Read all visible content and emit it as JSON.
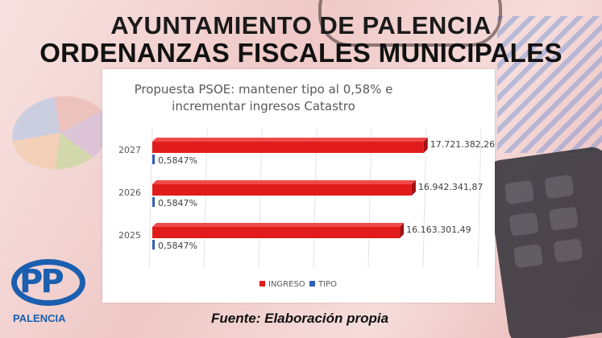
{
  "header": {
    "line1": "AYUNTAMIENTO DE PALENCIA",
    "line2": "ORDENANZAS FISCALES MUNICIPALES"
  },
  "footer": {
    "source": "Fuente: Elaboración propia",
    "logo_text": "PP",
    "logo_label": "PALENCIA"
  },
  "colors": {
    "ingreso": "#e11b1b",
    "tipo": "#2f5eb5",
    "brand": "#1a5fb0"
  },
  "chart_data": {
    "type": "bar",
    "orientation": "horizontal",
    "title": "Propuesta PSOE: mantener tipo al 0,58% e incrementar ingresos Catastro",
    "title_lines": [
      "Propuesta PSOE: mantener tipo al 0,58% e",
      "incrementar ingresos Catastro"
    ],
    "categories": [
      "2027",
      "2026",
      "2025"
    ],
    "series": [
      {
        "name": "INGRESO",
        "values": [
          17721382.26,
          16942341.87,
          16163301.49
        ],
        "labels": [
          "17.721.382,26",
          "16.942.341,87",
          "16.163.301,49"
        ]
      },
      {
        "name": "TIPO",
        "values": [
          0.5847,
          0.5847,
          0.5847
        ],
        "labels": [
          "0,5847%",
          "0,5847%",
          "0,5847%"
        ]
      }
    ],
    "legend_position": "bottom",
    "grid": true
  }
}
